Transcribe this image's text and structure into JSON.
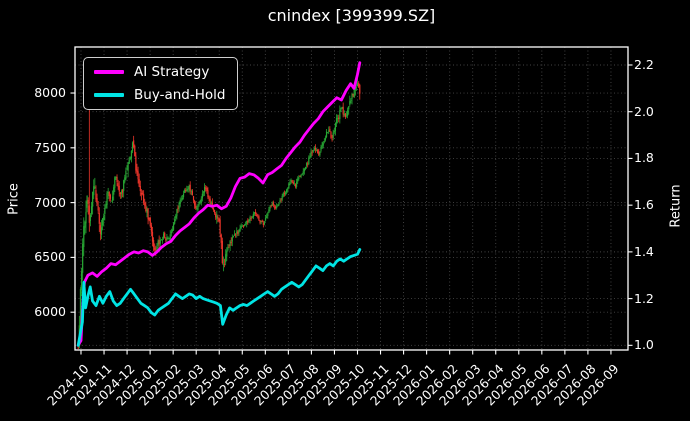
{
  "title": "cnindex [399399.SZ]",
  "legend": {
    "items": [
      {
        "label": "AI Strategy",
        "color": "#ff00ff"
      },
      {
        "label": "Buy-and-Hold",
        "color": "#00e4e4"
      }
    ]
  },
  "chart_data": {
    "type": "candlestick+line",
    "title": "cnindex [399399.SZ]",
    "grid": true,
    "legend_position": "upper-left",
    "colors": {
      "background": "#000000",
      "text": "#ffffff",
      "grid": "#454545",
      "spine": "#ffffff",
      "candle_up": "#27a633",
      "candle_down": "#ee352a",
      "ai_strategy": "#ff00ff",
      "buy_and_hold": "#00e4e4"
    },
    "x_axis": {
      "months_shown": 24,
      "pad_months": 0.26,
      "tick_rotation_deg": 45,
      "tick_labels": [
        "2024-10",
        "2024-11",
        "2024-12",
        "2025-01",
        "2025-02",
        "2025-03",
        "2025-04",
        "2025-05",
        "2025-06",
        "2025-07",
        "2025-08",
        "2025-09",
        "2025-10",
        "2025-11",
        "2025-12",
        "2026-01",
        "2026-02",
        "2026-03",
        "2026-04",
        "2026-05",
        "2026-06",
        "2026-07",
        "2026-08",
        "2026-09"
      ]
    },
    "y_left": {
      "label": "Price",
      "ticks": [
        6000,
        6500,
        7000,
        7500,
        8000
      ],
      "range": [
        5655,
        8420
      ]
    },
    "y_right": {
      "label": "Return",
      "ticks": [
        1.0,
        1.2,
        1.4,
        1.6,
        1.8,
        2.0,
        2.2
      ],
      "range": [
        0.98,
        2.277
      ]
    },
    "series": [
      {
        "name": "AI Strategy",
        "axis": "right",
        "color": "#ff00ff",
        "width": 2.8,
        "points": [
          [
            -0.12,
            1.0
          ],
          [
            0,
            1.02
          ],
          [
            0.08,
            1.18
          ],
          [
            0.15,
            1.27
          ],
          [
            0.3,
            1.3
          ],
          [
            0.5,
            1.31
          ],
          [
            0.7,
            1.295
          ],
          [
            0.9,
            1.315
          ],
          [
            1.1,
            1.33
          ],
          [
            1.3,
            1.35
          ],
          [
            1.5,
            1.345
          ],
          [
            1.7,
            1.36
          ],
          [
            1.9,
            1.375
          ],
          [
            2.1,
            1.39
          ],
          [
            2.3,
            1.4
          ],
          [
            2.5,
            1.395
          ],
          [
            2.7,
            1.405
          ],
          [
            2.9,
            1.4
          ],
          [
            3.1,
            1.385
          ],
          [
            3.3,
            1.4
          ],
          [
            3.5,
            1.42
          ],
          [
            3.7,
            1.435
          ],
          [
            3.9,
            1.445
          ],
          [
            4.1,
            1.47
          ],
          [
            4.3,
            1.49
          ],
          [
            4.5,
            1.505
          ],
          [
            4.7,
            1.52
          ],
          [
            4.9,
            1.545
          ],
          [
            5.1,
            1.565
          ],
          [
            5.3,
            1.58
          ],
          [
            5.5,
            1.6
          ],
          [
            5.7,
            1.595
          ],
          [
            5.9,
            1.6
          ],
          [
            6.1,
            1.585
          ],
          [
            6.3,
            1.595
          ],
          [
            6.5,
            1.63
          ],
          [
            6.7,
            1.68
          ],
          [
            6.9,
            1.715
          ],
          [
            7.1,
            1.72
          ],
          [
            7.3,
            1.735
          ],
          [
            7.5,
            1.73
          ],
          [
            7.7,
            1.715
          ],
          [
            7.9,
            1.695
          ],
          [
            8.1,
            1.73
          ],
          [
            8.3,
            1.74
          ],
          [
            8.5,
            1.755
          ],
          [
            8.7,
            1.77
          ],
          [
            8.9,
            1.8
          ],
          [
            9.1,
            1.825
          ],
          [
            9.3,
            1.85
          ],
          [
            9.5,
            1.87
          ],
          [
            9.7,
            1.9
          ],
          [
            9.9,
            1.925
          ],
          [
            10.1,
            1.95
          ],
          [
            10.3,
            1.97
          ],
          [
            10.5,
            2.0
          ],
          [
            10.7,
            2.02
          ],
          [
            10.9,
            2.04
          ],
          [
            11.1,
            2.06
          ],
          [
            11.3,
            2.05
          ],
          [
            11.5,
            2.09
          ],
          [
            11.7,
            2.12
          ],
          [
            11.85,
            2.1
          ],
          [
            12.0,
            2.16
          ],
          [
            12.1,
            2.21
          ]
        ]
      },
      {
        "name": "Buy-and-Hold",
        "axis": "right",
        "color": "#00e4e4",
        "width": 2.8,
        "points": [
          [
            -0.12,
            1.0
          ],
          [
            0.06,
            1.1
          ],
          [
            0.12,
            1.27
          ],
          [
            0.2,
            1.16
          ],
          [
            0.3,
            1.21
          ],
          [
            0.4,
            1.25
          ],
          [
            0.5,
            1.19
          ],
          [
            0.65,
            1.17
          ],
          [
            0.8,
            1.21
          ],
          [
            0.95,
            1.18
          ],
          [
            1.1,
            1.21
          ],
          [
            1.25,
            1.23
          ],
          [
            1.4,
            1.19
          ],
          [
            1.55,
            1.17
          ],
          [
            1.7,
            1.18
          ],
          [
            1.85,
            1.2
          ],
          [
            2.0,
            1.22
          ],
          [
            2.15,
            1.24
          ],
          [
            2.3,
            1.22
          ],
          [
            2.45,
            1.2
          ],
          [
            2.6,
            1.18
          ],
          [
            2.75,
            1.17
          ],
          [
            2.9,
            1.16
          ],
          [
            3.05,
            1.14
          ],
          [
            3.2,
            1.13
          ],
          [
            3.35,
            1.15
          ],
          [
            3.5,
            1.16
          ],
          [
            3.65,
            1.17
          ],
          [
            3.8,
            1.18
          ],
          [
            3.95,
            1.2
          ],
          [
            4.1,
            1.22
          ],
          [
            4.25,
            1.21
          ],
          [
            4.4,
            1.2
          ],
          [
            4.55,
            1.21
          ],
          [
            4.7,
            1.22
          ],
          [
            4.85,
            1.215
          ],
          [
            5.0,
            1.2
          ],
          [
            5.15,
            1.21
          ],
          [
            5.3,
            1.2
          ],
          [
            5.45,
            1.195
          ],
          [
            5.6,
            1.19
          ],
          [
            5.75,
            1.185
          ],
          [
            5.9,
            1.18
          ],
          [
            6.05,
            1.17
          ],
          [
            6.15,
            1.09
          ],
          [
            6.3,
            1.13
          ],
          [
            6.45,
            1.16
          ],
          [
            6.6,
            1.15
          ],
          [
            6.75,
            1.16
          ],
          [
            6.9,
            1.17
          ],
          [
            7.05,
            1.175
          ],
          [
            7.2,
            1.17
          ],
          [
            7.35,
            1.18
          ],
          [
            7.5,
            1.19
          ],
          [
            7.65,
            1.2
          ],
          [
            7.8,
            1.21
          ],
          [
            7.95,
            1.22
          ],
          [
            8.1,
            1.23
          ],
          [
            8.25,
            1.22
          ],
          [
            8.4,
            1.21
          ],
          [
            8.55,
            1.22
          ],
          [
            8.7,
            1.24
          ],
          [
            8.85,
            1.25
          ],
          [
            9.0,
            1.26
          ],
          [
            9.15,
            1.27
          ],
          [
            9.3,
            1.26
          ],
          [
            9.45,
            1.25
          ],
          [
            9.6,
            1.26
          ],
          [
            9.75,
            1.28
          ],
          [
            9.9,
            1.3
          ],
          [
            10.05,
            1.32
          ],
          [
            10.2,
            1.34
          ],
          [
            10.35,
            1.33
          ],
          [
            10.5,
            1.32
          ],
          [
            10.65,
            1.34
          ],
          [
            10.8,
            1.35
          ],
          [
            10.95,
            1.34
          ],
          [
            11.1,
            1.36
          ],
          [
            11.25,
            1.37
          ],
          [
            11.4,
            1.36
          ],
          [
            11.55,
            1.37
          ],
          [
            11.7,
            1.38
          ],
          [
            11.85,
            1.385
          ],
          [
            12.0,
            1.39
          ],
          [
            12.1,
            1.41
          ]
        ]
      }
    ],
    "candles": {
      "axis": "left",
      "count": 255,
      "t_start": -0.12,
      "t_end": 12.1,
      "seed": 11,
      "first_open": 5680,
      "min_low": 5670,
      "max_high": 8400,
      "spikes": [
        {
          "t": 0.37,
          "high": 8150
        },
        {
          "t": 12.02,
          "high": 8230
        }
      ],
      "close_path": [
        [
          -0.12,
          5700
        ],
        [
          0,
          6300
        ],
        [
          0.12,
          6800
        ],
        [
          0.25,
          7050
        ],
        [
          0.4,
          6800
        ],
        [
          0.55,
          7200
        ],
        [
          0.7,
          7000
        ],
        [
          0.85,
          6750
        ],
        [
          1.0,
          6900
        ],
        [
          1.15,
          7100
        ],
        [
          1.3,
          7000
        ],
        [
          1.5,
          7250
        ],
        [
          1.7,
          7050
        ],
        [
          1.9,
          7200
        ],
        [
          2.1,
          7400
        ],
        [
          2.25,
          7550
        ],
        [
          2.4,
          7300
        ],
        [
          2.6,
          7100
        ],
        [
          2.8,
          6950
        ],
        [
          3.0,
          6800
        ],
        [
          3.2,
          6550
        ],
        [
          3.4,
          6650
        ],
        [
          3.6,
          6700
        ],
        [
          3.8,
          6650
        ],
        [
          4.0,
          6800
        ],
        [
          4.2,
          6950
        ],
        [
          4.4,
          7050
        ],
        [
          4.6,
          7150
        ],
        [
          4.8,
          7100
        ],
        [
          5.0,
          6950
        ],
        [
          5.2,
          7050
        ],
        [
          5.4,
          7150
        ],
        [
          5.6,
          7000
        ],
        [
          5.8,
          6900
        ],
        [
          6.0,
          6800
        ],
        [
          6.15,
          6450
        ],
        [
          6.3,
          6500
        ],
        [
          6.5,
          6650
        ],
        [
          6.7,
          6700
        ],
        [
          6.9,
          6750
        ],
        [
          7.1,
          6800
        ],
        [
          7.3,
          6850
        ],
        [
          7.5,
          6900
        ],
        [
          7.7,
          6850
        ],
        [
          7.9,
          6800
        ],
        [
          8.1,
          6900
        ],
        [
          8.3,
          7000
        ],
        [
          8.5,
          6950
        ],
        [
          8.7,
          7050
        ],
        [
          8.9,
          7100
        ],
        [
          9.1,
          7200
        ],
        [
          9.3,
          7150
        ],
        [
          9.5,
          7250
        ],
        [
          9.7,
          7300
        ],
        [
          9.9,
          7400
        ],
        [
          10.1,
          7500
        ],
        [
          10.3,
          7450
        ],
        [
          10.5,
          7550
        ],
        [
          10.7,
          7650
        ],
        [
          10.9,
          7600
        ],
        [
          11.1,
          7750
        ],
        [
          11.3,
          7850
        ],
        [
          11.5,
          7800
        ],
        [
          11.7,
          7950
        ],
        [
          11.9,
          8050
        ],
        [
          12.0,
          8100
        ],
        [
          12.1,
          8000
        ]
      ],
      "volatility_path": [
        [
          -0.12,
          200
        ],
        [
          0.3,
          230
        ],
        [
          0.6,
          170
        ],
        [
          1,
          130
        ],
        [
          1.5,
          120
        ],
        [
          2,
          120
        ],
        [
          2.5,
          110
        ],
        [
          3,
          95
        ],
        [
          3.5,
          80
        ],
        [
          4,
          75
        ],
        [
          4.5,
          75
        ],
        [
          5,
          75
        ],
        [
          5.5,
          75
        ],
        [
          6,
          95
        ],
        [
          6.2,
          150
        ],
        [
          6.5,
          90
        ],
        [
          7,
          65
        ],
        [
          7.5,
          55
        ],
        [
          8,
          55
        ],
        [
          8.5,
          60
        ],
        [
          9,
          60
        ],
        [
          9.5,
          65
        ],
        [
          10,
          70
        ],
        [
          10.5,
          75
        ],
        [
          11,
          85
        ],
        [
          11.5,
          95
        ],
        [
          12.1,
          115
        ]
      ]
    }
  }
}
